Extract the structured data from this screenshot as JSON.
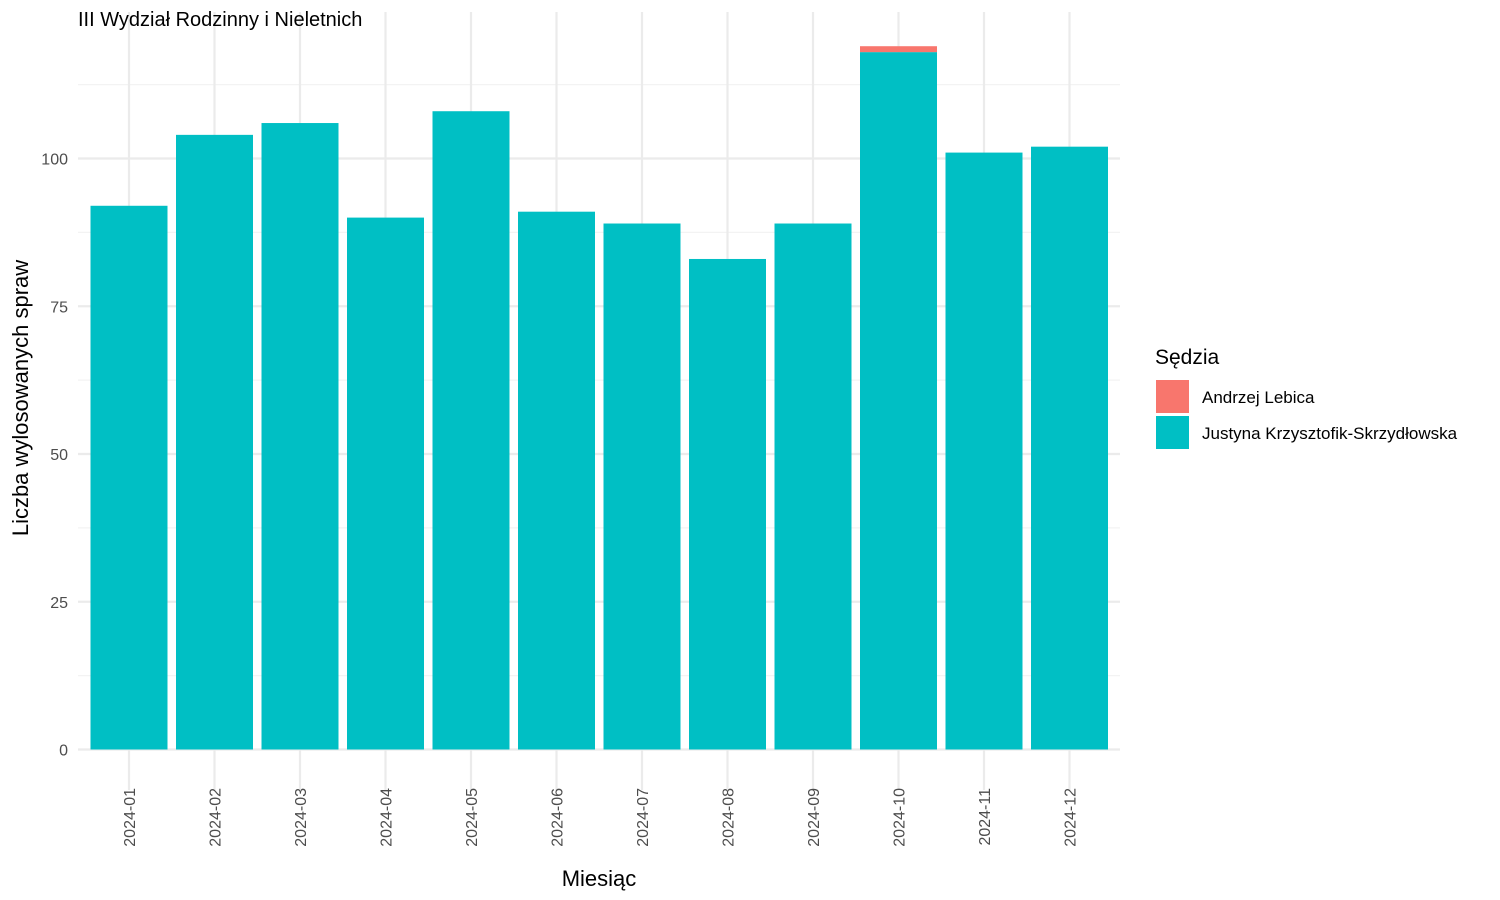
{
  "chart_data": {
    "type": "bar",
    "stacked": true,
    "title": "III Wydział Rodzinny i Nieletnich",
    "xlabel": "Miesiąc",
    "ylabel": "Liczba wylosowanych spraw",
    "ylim": [
      0,
      122
    ],
    "yticks": [
      0,
      25,
      50,
      75,
      100
    ],
    "grid": true,
    "legend_title": "Sędzia",
    "legend_position": "right",
    "categories": [
      "2024-01",
      "2024-02",
      "2024-03",
      "2024-04",
      "2024-05",
      "2024-06",
      "2024-07",
      "2024-08",
      "2024-09",
      "2024-10",
      "2024-11",
      "2024-12"
    ],
    "series": [
      {
        "name": "Justyna Krzysztofik-Skrzydłowska",
        "color": "#00BFC4",
        "values": [
          92,
          104,
          106,
          90,
          108,
          91,
          89,
          83,
          89,
          118,
          101,
          102
        ]
      },
      {
        "name": "Andrzej Lebica",
        "color": "#F8766D",
        "values": [
          0,
          0,
          0,
          0,
          0,
          0,
          0,
          0,
          0,
          1,
          0,
          0
        ]
      }
    ],
    "legend_order": [
      "Andrzej Lebica",
      "Justyna Krzysztofik-Skrzydłowska"
    ]
  }
}
